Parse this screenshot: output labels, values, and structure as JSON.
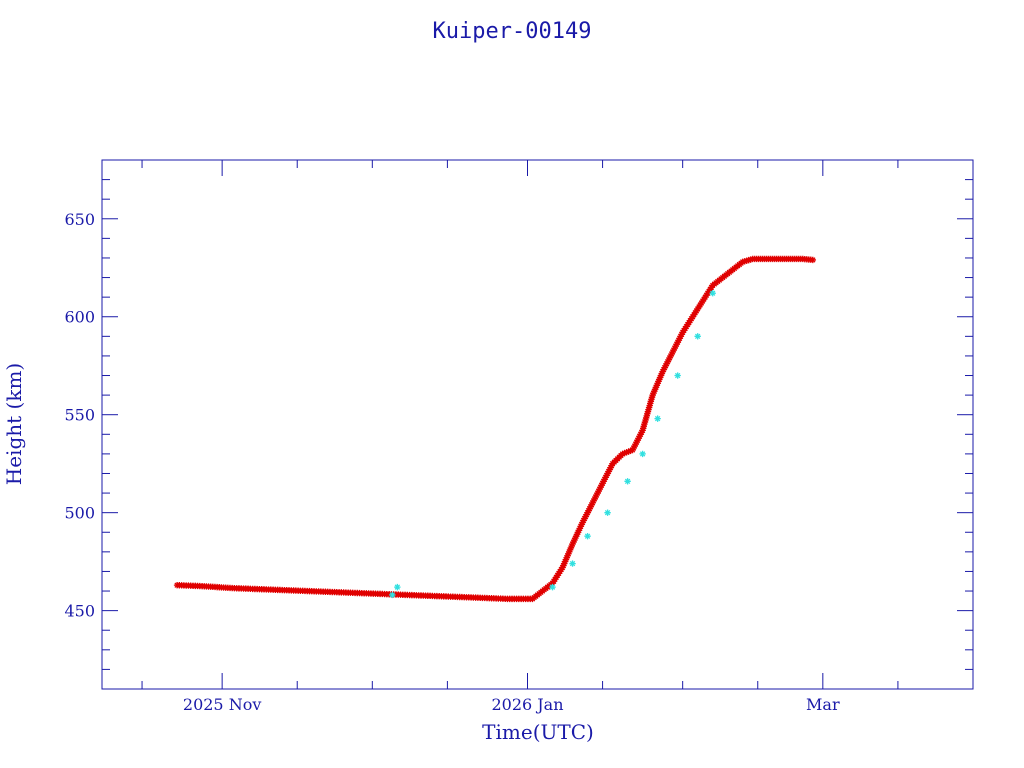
{
  "chart_data": {
    "type": "scatter",
    "title": "Kuiper-00149",
    "xlabel": "Time(UTC)",
    "ylabel": "Height (km)",
    "x_axis_type": "date",
    "xlim": [
      "2025-10-08",
      "2026-03-31"
    ],
    "ylim": [
      410,
      680
    ],
    "x_ticks": [
      {
        "date": "2025-11-01",
        "label": "2025 Nov"
      },
      {
        "date": "2026-01-01",
        "label": "2026 Jan"
      },
      {
        "date": "2026-03-01",
        "label": "Mar"
      }
    ],
    "y_ticks": [
      450,
      500,
      550,
      600,
      650
    ],
    "grid": false,
    "legend": "none",
    "colors": {
      "axis": "#1a1aa8",
      "primary": "#e00000",
      "secondary": "#33e0e0"
    },
    "series": [
      {
        "marker": "star",
        "color": "#e00000",
        "x": [
          "2025-10-23",
          "2025-10-28",
          "2025-11-03",
          "2025-11-08",
          "2025-11-13",
          "2025-11-18",
          "2025-11-23",
          "2025-11-28",
          "2025-12-03",
          "2025-12-08",
          "2025-12-13",
          "2025-12-18",
          "2025-12-23",
          "2025-12-28",
          "2026-01-02",
          "2026-01-04",
          "2026-01-06",
          "2026-01-08",
          "2026-01-10",
          "2026-01-12",
          "2026-01-14",
          "2026-01-16",
          "2026-01-18",
          "2026-01-20",
          "2026-01-22",
          "2026-01-24",
          "2026-01-26",
          "2026-01-28",
          "2026-01-30",
          "2026-02-01",
          "2026-02-03",
          "2026-02-05",
          "2026-02-07",
          "2026-02-09",
          "2026-02-11",
          "2026-02-13",
          "2026-02-15",
          "2026-02-17",
          "2026-02-19",
          "2026-02-21",
          "2026-02-23",
          "2026-02-25",
          "2026-02-27"
        ],
        "y": [
          463,
          462.5,
          461.5,
          461,
          460.5,
          460,
          459.5,
          459,
          458.5,
          458,
          457.5,
          457,
          456.5,
          456,
          456,
          460,
          464,
          472,
          484,
          495,
          505,
          515,
          525,
          530,
          532,
          542,
          560,
          572,
          582,
          592,
          600,
          608,
          616,
          620,
          624,
          628,
          629.5,
          629.5,
          629.5,
          629.5,
          629.5,
          629.5,
          629
        ]
      },
      {
        "marker": "star",
        "color": "#33e0e0",
        "x": [
          "2025-12-05",
          "2025-12-06",
          "2026-01-06",
          "2026-01-10",
          "2026-01-13",
          "2026-01-17",
          "2026-01-21",
          "2026-01-24",
          "2026-01-27",
          "2026-01-31",
          "2026-02-04",
          "2026-02-07"
        ],
        "y": [
          458,
          462,
          462,
          474,
          488,
          500,
          516,
          530,
          548,
          570,
          590,
          612
        ]
      }
    ]
  }
}
